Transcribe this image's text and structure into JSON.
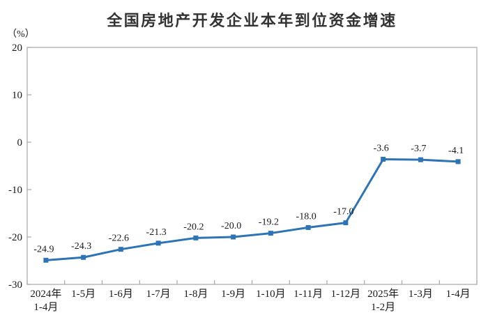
{
  "page": {
    "background": "#FFFFFF"
  },
  "chart_data": {
    "type": "line",
    "title": "全国房地产开发企业本年到位资金增速",
    "unit_label": "（%）",
    "categories": [
      "2024年\n1-4月",
      "1-5月",
      "1-6月",
      "1-7月",
      "1-8月",
      "1-9月",
      "1-10月",
      "1-11月",
      "1-12月",
      "2025年\n1-2月",
      "1-3月",
      "1-4月"
    ],
    "values": [
      -24.9,
      -24.3,
      -22.6,
      -21.3,
      -20.2,
      -20.0,
      -19.2,
      -18.0,
      -17.0,
      -3.6,
      -3.7,
      -4.1
    ],
    "data_labels": [
      "-24.9",
      "-24.3",
      "-22.6",
      "-21.3",
      "-20.2",
      "-20.0",
      "-19.2",
      "-18.0",
      "-17.0",
      "-3.6",
      "-3.7",
      "-4.1"
    ],
    "ylim": [
      -30,
      20
    ],
    "ytick_step": 10,
    "ytick_labels": [
      "20",
      "10",
      "0",
      "-10",
      "-20",
      "-30"
    ],
    "grid": false,
    "legend_position": "none",
    "marker": "square",
    "colors": {
      "line": "#2E74B5",
      "marker": "#2E74B5",
      "plot_border": "#A6A6A6",
      "tick": "#A6A6A6",
      "text": "#1a1a1a",
      "title": "#333333"
    }
  }
}
